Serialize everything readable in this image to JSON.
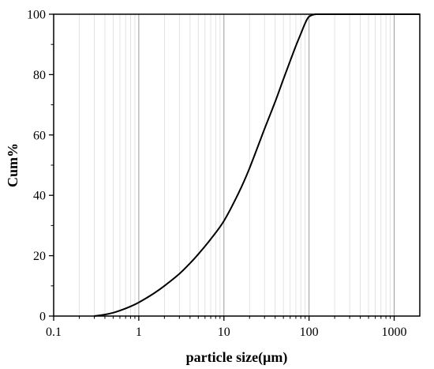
{
  "chart_data": {
    "type": "line",
    "xlabel": "particle size(μm)",
    "ylabel": "Cum%",
    "xscale": "log",
    "xlim": [
      0.1,
      2000
    ],
    "ylim": [
      0,
      100
    ],
    "x_ticks": [
      0.1,
      1,
      10,
      100,
      1000
    ],
    "x_tick_labels": [
      "0.1",
      "1",
      "10",
      "100",
      "1000"
    ],
    "y_ticks": [
      0,
      20,
      40,
      60,
      80,
      100
    ],
    "y_tick_labels": [
      "0",
      "20",
      "40",
      "60",
      "80",
      "100"
    ],
    "grid": "vertical log grid lines",
    "series": [
      {
        "x": [
          0.3,
          0.4,
          0.5,
          0.6,
          0.8,
          1,
          1.5,
          2,
          3,
          4,
          5,
          7,
          10,
          15,
          20,
          30,
          40,
          50,
          60,
          70,
          80,
          90,
          100,
          120,
          150,
          200,
          500,
          1000,
          2000
        ],
        "y": [
          0,
          0.5,
          1.1,
          1.8,
          3.2,
          4.5,
          7.5,
          10,
          14,
          17.5,
          20.5,
          25.5,
          31.5,
          41,
          49,
          62,
          71,
          78.5,
          84.5,
          89.5,
          93.5,
          97,
          99.2,
          100,
          100,
          100,
          100,
          100,
          100
        ],
        "color": "#000000"
      }
    ]
  }
}
